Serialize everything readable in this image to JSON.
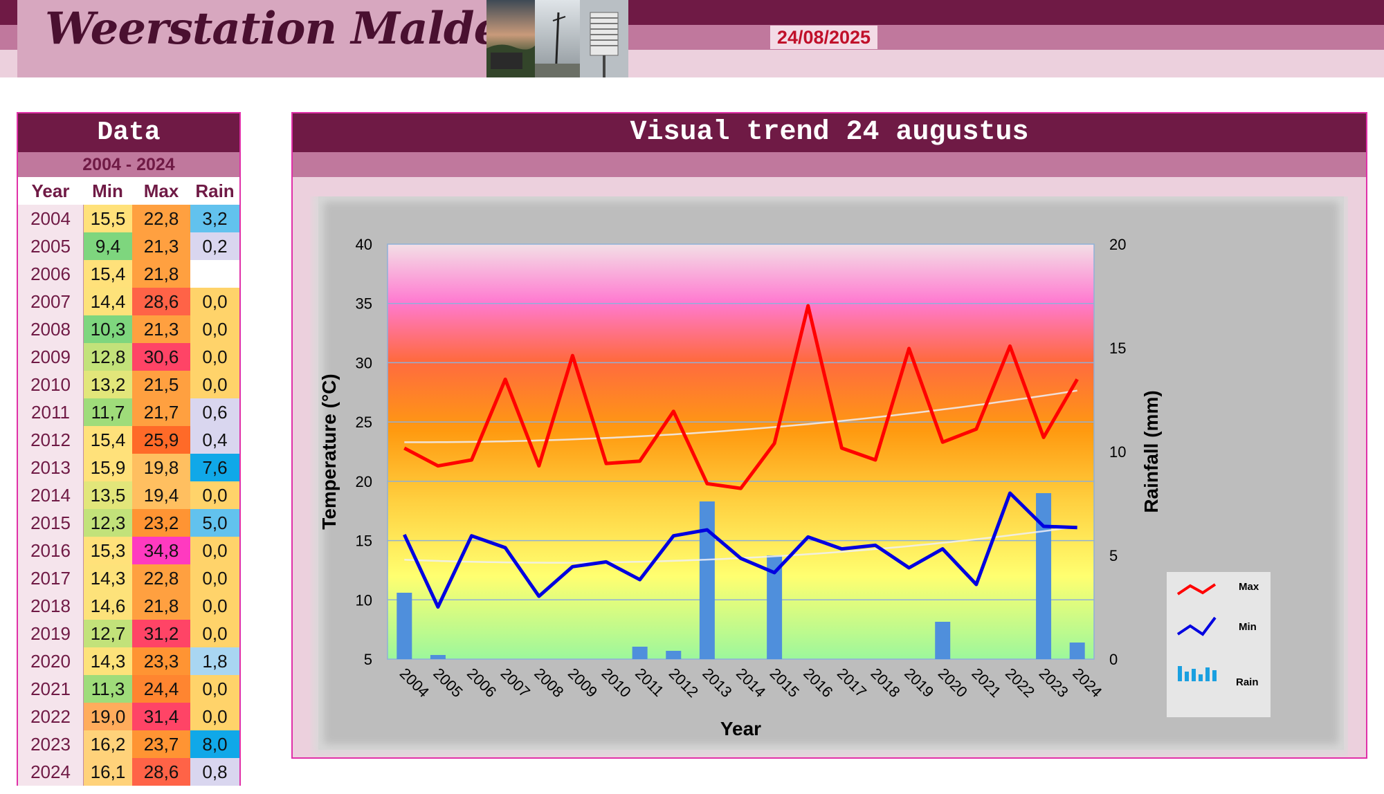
{
  "header": {
    "title": "Weerstation Malderen",
    "date": "24/08/2025"
  },
  "table": {
    "title": "Data",
    "range": "2004 - 2024",
    "columns": [
      "Year",
      "Min",
      "Max",
      "Rain"
    ],
    "rows": [
      {
        "year": "2004",
        "min": "15,5",
        "max": "22,8",
        "rain": "3,2"
      },
      {
        "year": "2005",
        "min": "9,4",
        "max": "21,3",
        "rain": "0,2"
      },
      {
        "year": "2006",
        "min": "15,4",
        "max": "21,8",
        "rain": ""
      },
      {
        "year": "2007",
        "min": "14,4",
        "max": "28,6",
        "rain": "0,0"
      },
      {
        "year": "2008",
        "min": "10,3",
        "max": "21,3",
        "rain": "0,0"
      },
      {
        "year": "2009",
        "min": "12,8",
        "max": "30,6",
        "rain": "0,0"
      },
      {
        "year": "2010",
        "min": "13,2",
        "max": "21,5",
        "rain": "0,0"
      },
      {
        "year": "2011",
        "min": "11,7",
        "max": "21,7",
        "rain": "0,6"
      },
      {
        "year": "2012",
        "min": "15,4",
        "max": "25,9",
        "rain": "0,4"
      },
      {
        "year": "2013",
        "min": "15,9",
        "max": "19,8",
        "rain": "7,6"
      },
      {
        "year": "2014",
        "min": "13,5",
        "max": "19,4",
        "rain": "0,0"
      },
      {
        "year": "2015",
        "min": "12,3",
        "max": "23,2",
        "rain": "5,0"
      },
      {
        "year": "2016",
        "min": "15,3",
        "max": "34,8",
        "rain": "0,0"
      },
      {
        "year": "2017",
        "min": "14,3",
        "max": "22,8",
        "rain": "0,0"
      },
      {
        "year": "2018",
        "min": "14,6",
        "max": "21,8",
        "rain": "0,0"
      },
      {
        "year": "2019",
        "min": "12,7",
        "max": "31,2",
        "rain": "0,0"
      },
      {
        "year": "2020",
        "min": "14,3",
        "max": "23,3",
        "rain": "1,8"
      },
      {
        "year": "2021",
        "min": "11,3",
        "max": "24,4",
        "rain": "0,0"
      },
      {
        "year": "2022",
        "min": "19,0",
        "max": "31,4",
        "rain": "0,0"
      },
      {
        "year": "2023",
        "min": "16,2",
        "max": "23,7",
        "rain": "8,0"
      },
      {
        "year": "2024",
        "min": "16,1",
        "max": "28,6",
        "rain": "0,8"
      }
    ]
  },
  "chart_panel": {
    "title": "Visual trend 24 augustus"
  },
  "chart_data": {
    "type": "line",
    "title": "Visual trend 24 augustus",
    "xlabel": "Year",
    "ylabel": "Temperature (°C)",
    "y2label": "Rainfall (mm)",
    "ylim": [
      5,
      40
    ],
    "y2lim": [
      0,
      20
    ],
    "yticks": [
      5,
      10,
      15,
      20,
      25,
      30,
      35,
      40
    ],
    "y2ticks": [
      0,
      5,
      10,
      15,
      20
    ],
    "x": [
      "2004",
      "2005",
      "2006",
      "2007",
      "2008",
      "2009",
      "2010",
      "2011",
      "2012",
      "2013",
      "2014",
      "2015",
      "2016",
      "2017",
      "2018",
      "2019",
      "2020",
      "2021",
      "2022",
      "2023",
      "2024"
    ],
    "series": [
      {
        "name": "Max",
        "type": "line",
        "axis": "left",
        "color": "#ff0000",
        "values": [
          22.8,
          21.3,
          21.8,
          28.6,
          21.3,
          30.6,
          21.5,
          21.7,
          25.9,
          19.8,
          19.4,
          23.2,
          34.8,
          22.8,
          21.8,
          31.2,
          23.3,
          24.4,
          31.4,
          23.7,
          28.6
        ]
      },
      {
        "name": "Min",
        "type": "line",
        "axis": "left",
        "color": "#0000e0",
        "values": [
          15.5,
          9.4,
          15.4,
          14.4,
          10.3,
          12.8,
          13.2,
          11.7,
          15.4,
          15.9,
          13.5,
          12.3,
          15.3,
          14.3,
          14.6,
          12.7,
          14.3,
          11.3,
          19.0,
          16.2,
          16.1
        ]
      },
      {
        "name": "Rain",
        "type": "bar",
        "axis": "right",
        "color": "#4f8fdc",
        "values": [
          3.2,
          0.2,
          null,
          0.0,
          0.0,
          0.0,
          0.0,
          0.6,
          0.4,
          7.6,
          0.0,
          5.0,
          0.0,
          0.0,
          0.0,
          0.0,
          1.8,
          0.0,
          0.0,
          8.0,
          0.8
        ]
      }
    ],
    "trendlines": true,
    "grid": true,
    "legend": "right"
  },
  "colors": {
    "brand_dark": "#6f1a45",
    "brand_mid": "#c0789d",
    "brand_light": "#ecd0dd",
    "border_pink": "#e030a8",
    "date_red": "#c0102a"
  }
}
